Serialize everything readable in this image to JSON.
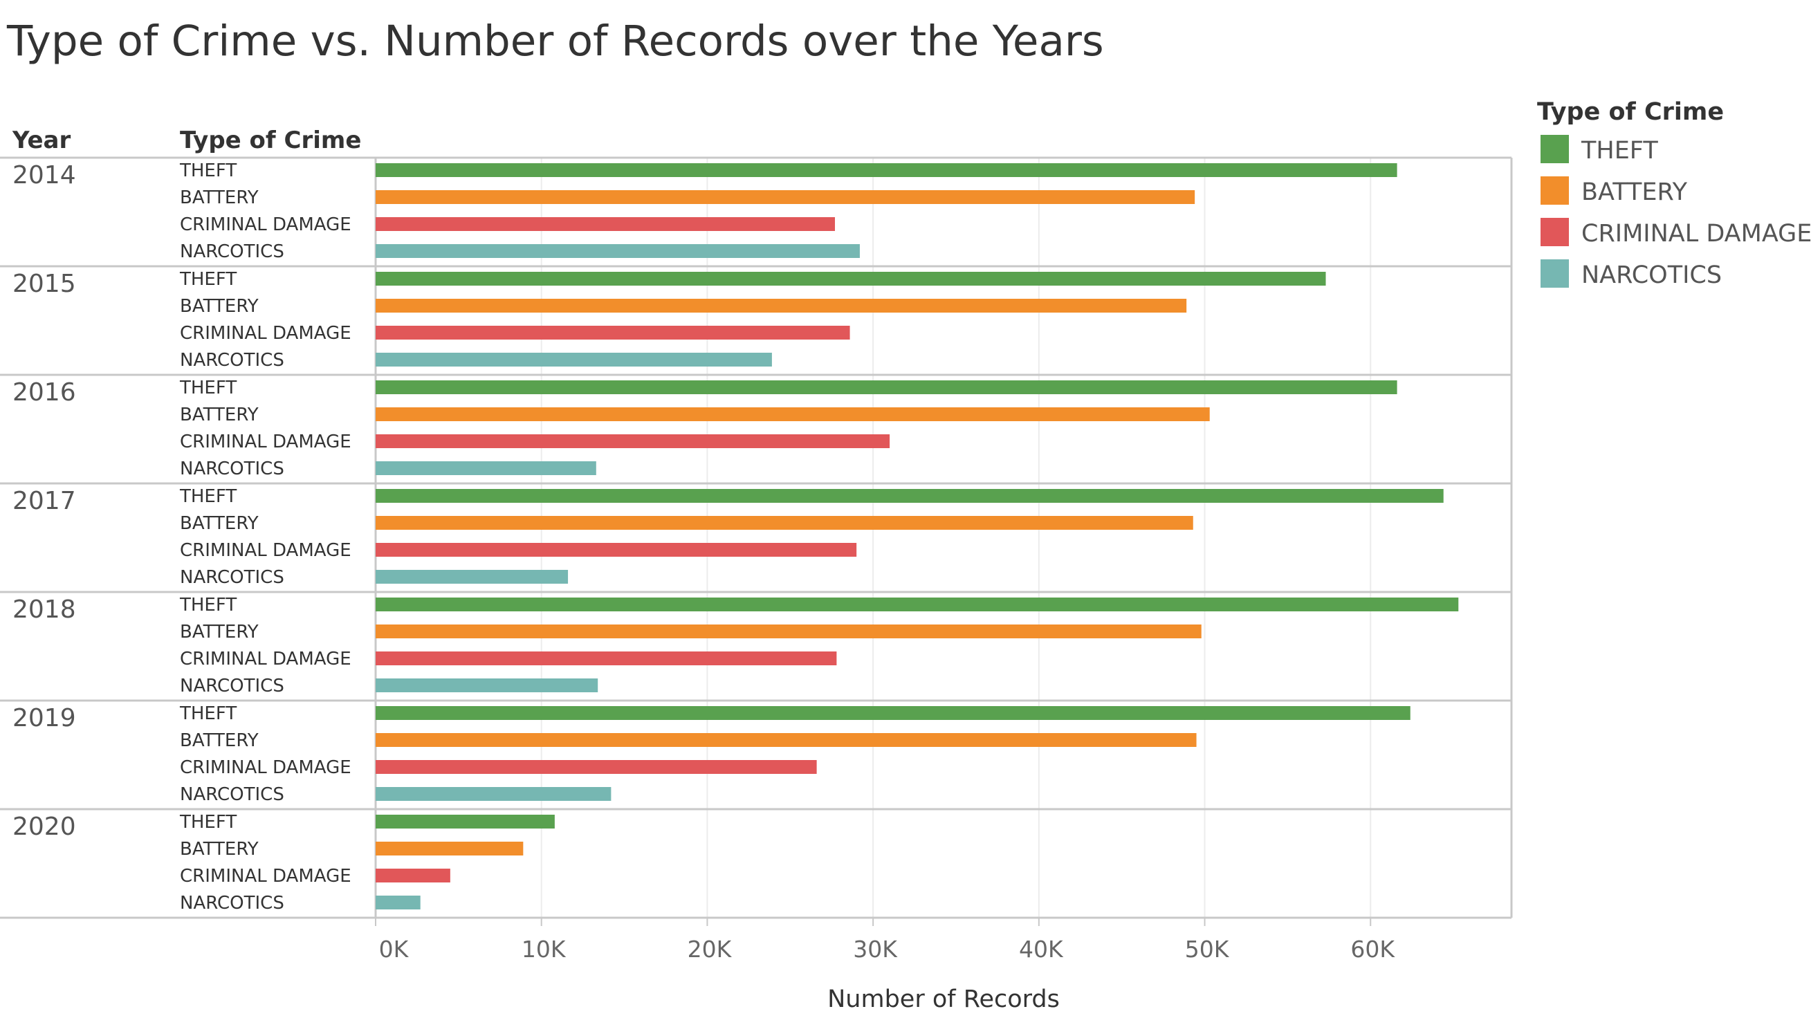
{
  "chart_data": {
    "type": "bar",
    "title": "Type of Crime vs. Number of Records over the Years",
    "row_headers": {
      "year": "Year",
      "crime": "Type of Crime"
    },
    "xlabel": "Number of Records",
    "xlim": [
      0,
      68500
    ],
    "xticks": [
      0,
      10000,
      20000,
      30000,
      40000,
      50000,
      60000
    ],
    "xtick_labels": [
      "0K",
      "10K",
      "20K",
      "30K",
      "40K",
      "50K",
      "60K"
    ],
    "grid": true,
    "legend": {
      "title": "Type of Crime",
      "position": "top-right",
      "items": [
        {
          "name": "THEFT",
          "color": "#59a14f"
        },
        {
          "name": "BATTERY",
          "color": "#f28e2b"
        },
        {
          "name": "CRIMINAL DAMAGE",
          "color": "#e15759"
        },
        {
          "name": "NARCOTICS",
          "color": "#76b7b2"
        }
      ]
    },
    "categories": [
      "THEFT",
      "BATTERY",
      "CRIMINAL DAMAGE",
      "NARCOTICS"
    ],
    "groups": [
      {
        "year": "2014",
        "values": [
          61600,
          49400,
          27700,
          29200
        ]
      },
      {
        "year": "2015",
        "values": [
          57300,
          48900,
          28600,
          23900
        ]
      },
      {
        "year": "2016",
        "values": [
          61600,
          50300,
          31000,
          13300
        ]
      },
      {
        "year": "2017",
        "values": [
          64400,
          49300,
          29000,
          11600
        ]
      },
      {
        "year": "2018",
        "values": [
          65300,
          49800,
          27800,
          13400
        ]
      },
      {
        "year": "2019",
        "values": [
          62400,
          49500,
          26600,
          14200
        ]
      },
      {
        "year": "2020",
        "values": [
          10800,
          8900,
          4500,
          2700
        ]
      }
    ]
  }
}
